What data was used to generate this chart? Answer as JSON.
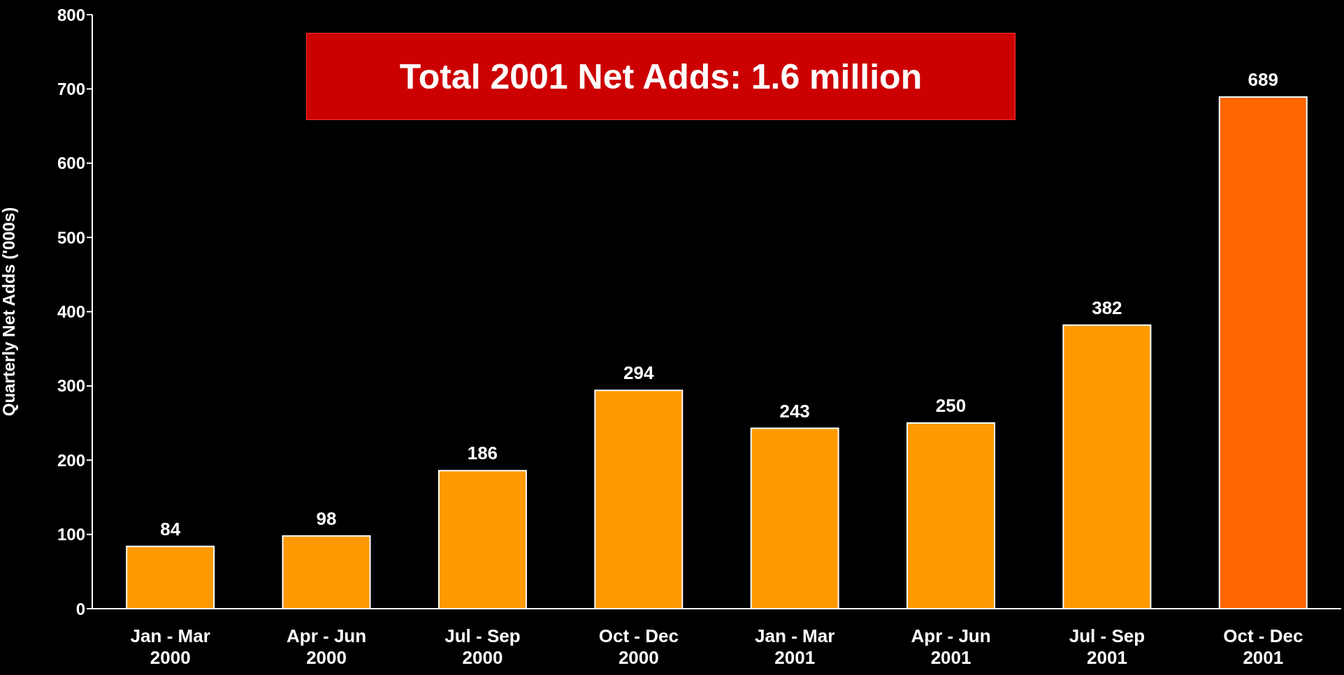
{
  "chart_data": {
    "type": "bar",
    "ylabel": "Quarterly Net Adds ('000s)",
    "categories": [
      "Jan - Mar 2000",
      "Apr - Jun 2000",
      "Jul - Sep 2000",
      "Oct - Dec 2000",
      "Jan - Mar 2001",
      "Apr - Jun 2001",
      "Jul - Sep 2001",
      "Oct - Dec 2001"
    ],
    "values": [
      84,
      98,
      186,
      294,
      243,
      250,
      382,
      689
    ],
    "colors": [
      "#ff9900",
      "#ff9900",
      "#ff9900",
      "#ff9900",
      "#ff9900",
      "#ff9900",
      "#ff9900",
      "#ff6600"
    ],
    "ylim": [
      0,
      800
    ],
    "yticks": [
      0,
      100,
      200,
      300,
      400,
      500,
      600,
      700,
      800
    ],
    "data_labels": true,
    "grid": false,
    "annotations": [
      "Total 2001 Net Adds: 1.6 million"
    ]
  }
}
